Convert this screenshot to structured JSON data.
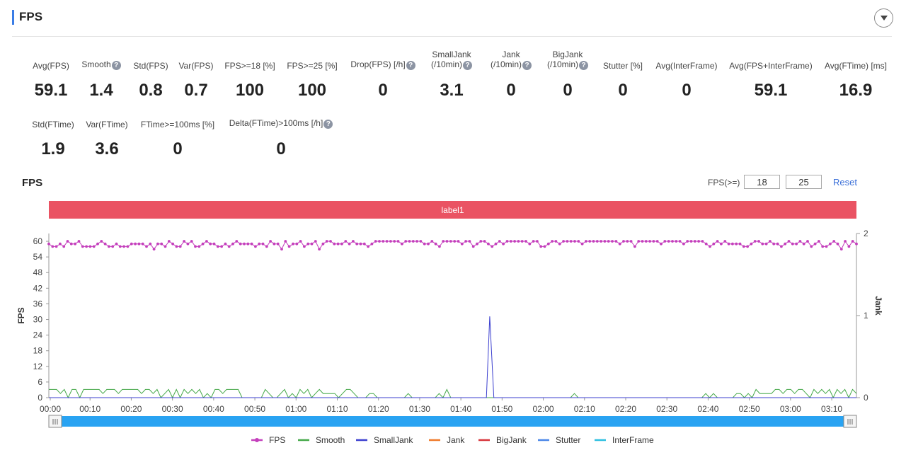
{
  "panel": {
    "title": "FPS",
    "collapse_icon": "chevron-down-icon"
  },
  "metrics_row1": [
    {
      "label": "Avg(FPS)",
      "value": "59.1",
      "help": false
    },
    {
      "label": "Smooth",
      "value": "1.4",
      "help": true
    },
    {
      "label": "Std(FPS)",
      "value": "0.8",
      "help": false
    },
    {
      "label": "Var(FPS)",
      "value": "0.7",
      "help": false
    },
    {
      "label": "FPS>=18 [%]",
      "value": "100",
      "help": false
    },
    {
      "label": "FPS>=25 [%]",
      "value": "100",
      "help": false
    },
    {
      "label": "Drop(FPS) [/h]",
      "value": "0",
      "help": true
    },
    {
      "label": "SmallJank",
      "label2": "(/10min)",
      "value": "3.1",
      "help": true
    },
    {
      "label": "Jank",
      "label2": "(/10min)",
      "value": "0",
      "help": true
    },
    {
      "label": "BigJank",
      "label2": "(/10min)",
      "value": "0",
      "help": true
    },
    {
      "label": "Stutter [%]",
      "value": "0",
      "help": false
    },
    {
      "label": "Avg(InterFrame)",
      "value": "0",
      "help": false
    },
    {
      "label": "Avg(FPS+InterFrame)",
      "value": "59.1",
      "help": false
    },
    {
      "label": "Avg(FTime) [ms]",
      "value": "16.9",
      "help": false
    }
  ],
  "metrics_row2": [
    {
      "label": "Std(FTime)",
      "value": "1.9",
      "help": false
    },
    {
      "label": "Var(FTime)",
      "value": "3.6",
      "help": false
    },
    {
      "label": "FTime>=100ms [%]",
      "value": "0",
      "help": false
    },
    {
      "label": "Delta(FTime)>100ms [/h]",
      "value": "0",
      "help": true
    }
  ],
  "help_glyph": "?",
  "chart_header": {
    "title": "FPS",
    "threshold_label": "FPS(>=)",
    "threshold_low": "18",
    "threshold_high": "25",
    "reset_label": "Reset"
  },
  "label_band": {
    "text": "label1",
    "color": "#ea5363"
  },
  "chart_data": {
    "type": "line",
    "ylabel": "FPS",
    "ylabel_right": "Jank",
    "ylim": [
      0,
      63
    ],
    "yticks": [
      0,
      6,
      12,
      18,
      24,
      30,
      36,
      42,
      48,
      54,
      60
    ],
    "ylim_right": [
      0,
      2
    ],
    "yticks_right": [
      0,
      1,
      2
    ],
    "x_range_seconds": [
      0,
      196
    ],
    "xticks": [
      "00:00",
      "00:10",
      "00:20",
      "00:30",
      "00:40",
      "00:50",
      "01:00",
      "01:10",
      "01:20",
      "01:30",
      "01:40",
      "01:50",
      "02:00",
      "02:10",
      "02:20",
      "02:30",
      "02:40",
      "02:50",
      "03:00",
      "03:10"
    ],
    "legend_position": "bottom",
    "series": [
      {
        "name": "FPS",
        "axis": "left",
        "color": "#c43fbc",
        "markers": true,
        "values": [
          59,
          58,
          58,
          59,
          58,
          60,
          59,
          59,
          60,
          58,
          58,
          58,
          58,
          59,
          60,
          59,
          58,
          58,
          59,
          58,
          58,
          58,
          59,
          59,
          59,
          59,
          58,
          59,
          57,
          59,
          59,
          58,
          60,
          59,
          58,
          58,
          60,
          59,
          60,
          58,
          58,
          59,
          60,
          59,
          59,
          58,
          58,
          59,
          58,
          59,
          60,
          59,
          59,
          59,
          59,
          58,
          59,
          59,
          58,
          60,
          59,
          59,
          57,
          60,
          58,
          59,
          59,
          60,
          58,
          59,
          59,
          60,
          57,
          59,
          60,
          60,
          59,
          59,
          59,
          60,
          59,
          60,
          59,
          59,
          59,
          58,
          59,
          60,
          60,
          60,
          60,
          60,
          60,
          60,
          59,
          60,
          60,
          60,
          60,
          60,
          59,
          59,
          60,
          59,
          58,
          60,
          60,
          60,
          60,
          60,
          59,
          60,
          60,
          58,
          59,
          60,
          60,
          59,
          58,
          59,
          60,
          59,
          60,
          60,
          60,
          60,
          60,
          60,
          59,
          60,
          60,
          58,
          58,
          59,
          60,
          60,
          59,
          60,
          60,
          60,
          60,
          60,
          59,
          60,
          60,
          60,
          60,
          60,
          60,
          60,
          60,
          60,
          59,
          60,
          60,
          60,
          58,
          60,
          60,
          60,
          60,
          60,
          60,
          59,
          60,
          60,
          60,
          60,
          60,
          59,
          60,
          60,
          60,
          60,
          60,
          59,
          58,
          59,
          60,
          59,
          60,
          59,
          59,
          59,
          59,
          58,
          58,
          59,
          60,
          60,
          59,
          59,
          60,
          59,
          59,
          58,
          59,
          60,
          59,
          59,
          60,
          59,
          60,
          58,
          59,
          60,
          58,
          58,
          59,
          60,
          59,
          57,
          60,
          58,
          60,
          59
        ]
      },
      {
        "name": "Smooth",
        "axis": "right",
        "color": "#44a848",
        "markers": false,
        "values": [
          0.1,
          0.1,
          0.1,
          0.05,
          0.1,
          0.0,
          0.1,
          0.1,
          0.0,
          0.1,
          0.1,
          0.1,
          0.1,
          0.1,
          0.05,
          0.1,
          0.1,
          0.1,
          0.05,
          0.1,
          0.1,
          0.1,
          0.1,
          0.1,
          0.05,
          0.1,
          0.1,
          0.05,
          0.1,
          0.0,
          0.05,
          0.1,
          0.0,
          0.1,
          0.0,
          0.1,
          0.05,
          0.1,
          0.05,
          0.1,
          0.0,
          0.05,
          0.0,
          0.1,
          0.1,
          0.05,
          0.1,
          0.1,
          0.1,
          0.1,
          0.0,
          0.0,
          0.0,
          0.0,
          0.0,
          0.0,
          0.1,
          0.05,
          0.0,
          0.0,
          0.05,
          0.1,
          0.0,
          0.05,
          0.0,
          0.1,
          0.05,
          0.1,
          0.0,
          0.05,
          0.1,
          0.05,
          0.05,
          0.05,
          0.05,
          0.0,
          0.05,
          0.1,
          0.1,
          0.05,
          0.0,
          0.0,
          0.0,
          0.05,
          0.05,
          0.0,
          0.0,
          0.0,
          0.0,
          0.0,
          0.0,
          0.0,
          0.0,
          0.05,
          0.0,
          0.0,
          0.0,
          0.0,
          0.0,
          0.0,
          0.0,
          0.05,
          0.0,
          0.1,
          0.0,
          0.0,
          0.0,
          0.0,
          0.0,
          0.0,
          0.0,
          0.0,
          0.0,
          0.0,
          0.0,
          0.0,
          0.0,
          0.0,
          0.0,
          0.0,
          0.0,
          0.0,
          0.0,
          0.0,
          0.0,
          0.0,
          0.0,
          0.0,
          0.0,
          0.0,
          0.0,
          0.0,
          0.0,
          0.0,
          0.0,
          0.0,
          0.05,
          0.0,
          0.0,
          0.0,
          0.0,
          0.0,
          0.0,
          0.0,
          0.0,
          0.0,
          0.0,
          0.0,
          0.0,
          0.0,
          0.0,
          0.0,
          0.0,
          0.0,
          0.0,
          0.0,
          0.0,
          0.0,
          0.0,
          0.0,
          0.0,
          0.0,
          0.0,
          0.0,
          0.0,
          0.0,
          0.0,
          0.0,
          0.0,
          0.0,
          0.05,
          0.0,
          0.05,
          0.0,
          0.0,
          0.0,
          0.0,
          0.0,
          0.05,
          0.05,
          0.0,
          0.05,
          0.0,
          0.1,
          0.05,
          0.05,
          0.05,
          0.05,
          0.1,
          0.1,
          0.05,
          0.1,
          0.1,
          0.05,
          0.1,
          0.1,
          0.05,
          0.0,
          0.1,
          0.05,
          0.1,
          0.05,
          0.1,
          0.0,
          0.1,
          0.05,
          0.1,
          0.0,
          0.1,
          0.05
        ]
      },
      {
        "name": "SmallJank",
        "axis": "right",
        "color": "#3b3fcf",
        "markers": false,
        "points": [
          [
            0,
            0
          ],
          [
            105,
            0
          ],
          [
            106.2,
            0
          ],
          [
            107,
            0.99
          ],
          [
            108,
            0
          ],
          [
            196,
            0
          ]
        ]
      },
      {
        "name": "Jank",
        "axis": "right",
        "color": "#ef7a29",
        "markers": false,
        "values": []
      },
      {
        "name": "BigJank",
        "axis": "right",
        "color": "#d7343a",
        "markers": false,
        "values": []
      },
      {
        "name": "Stutter",
        "axis": "right",
        "color": "#4a86e8",
        "markers": false,
        "values": []
      },
      {
        "name": "InterFrame",
        "axis": "right",
        "color": "#2dbfe0",
        "markers": false,
        "values": []
      }
    ]
  }
}
